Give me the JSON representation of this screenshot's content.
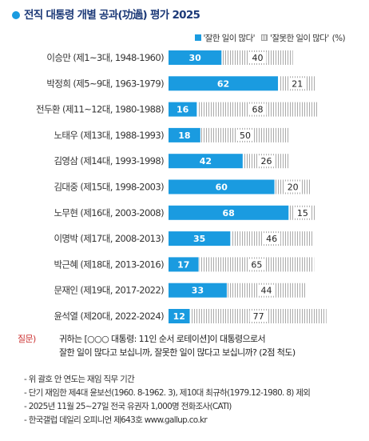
{
  "title": "전직 대통령 개별 공과(功過) 평가 2025",
  "legend": {
    "good": "'잘한 일이 많다'",
    "bad": "'잘못한 일이 많다'",
    "unit": "(%)"
  },
  "colors": {
    "good": "#1a9be0",
    "bad_pattern": "#aaaaaa",
    "title": "#1d3a78",
    "question": "#cc3333"
  },
  "chart_data": {
    "type": "bar",
    "orientation": "horizontal",
    "stacked": true,
    "categories": [
      "이승만 (제1~3대, 1948-1960)",
      "박정희 (제5~9대, 1963-1979)",
      "전두환 (제11~12대, 1980-1988)",
      "노태우 (제13대, 1988-1993)",
      "김영삼 (제14대, 1993-1998)",
      "김대중 (제15대, 1998-2003)",
      "노무현 (제16대, 2003-2008)",
      "이명박 (제17대, 2008-2013)",
      "박근혜 (제18대, 2013-2016)",
      "문재인 (제19대, 2017-2022)",
      "윤석열 (제20대, 2022-2024)"
    ],
    "series": [
      {
        "name": "'잘한 일이 많다'",
        "values": [
          30,
          62,
          16,
          18,
          42,
          60,
          68,
          35,
          17,
          33,
          12
        ]
      },
      {
        "name": "'잘못한 일이 많다'",
        "values": [
          40,
          21,
          68,
          50,
          26,
          20,
          15,
          46,
          65,
          44,
          77
        ]
      }
    ],
    "xlim": [
      0,
      100
    ],
    "legend_position": "top-right"
  },
  "question": {
    "label": "질문)",
    "lines": [
      "귀하는 [○○○ 대통령: 11인 순서 로테이션]이 대통령으로서",
      "잘한 일이 많다고 보십니까, 잘못한 일이 많다고 보십니까? (2점 척도)"
    ]
  },
  "notes": [
    "- 위 괄호 안 연도는 재임 직무 기간",
    "- 단기 재임한 제4대 윤보선(1960. 8-1962. 3), 제10대 최규하(1979.12-1980. 8) 제외",
    "- 2025년 11월 25~27일 전국 유권자 1,000명 전화조사(CATI)",
    "- 한국갤럽 데일리 오피니언 제643호 www.gallup.co.kr"
  ]
}
